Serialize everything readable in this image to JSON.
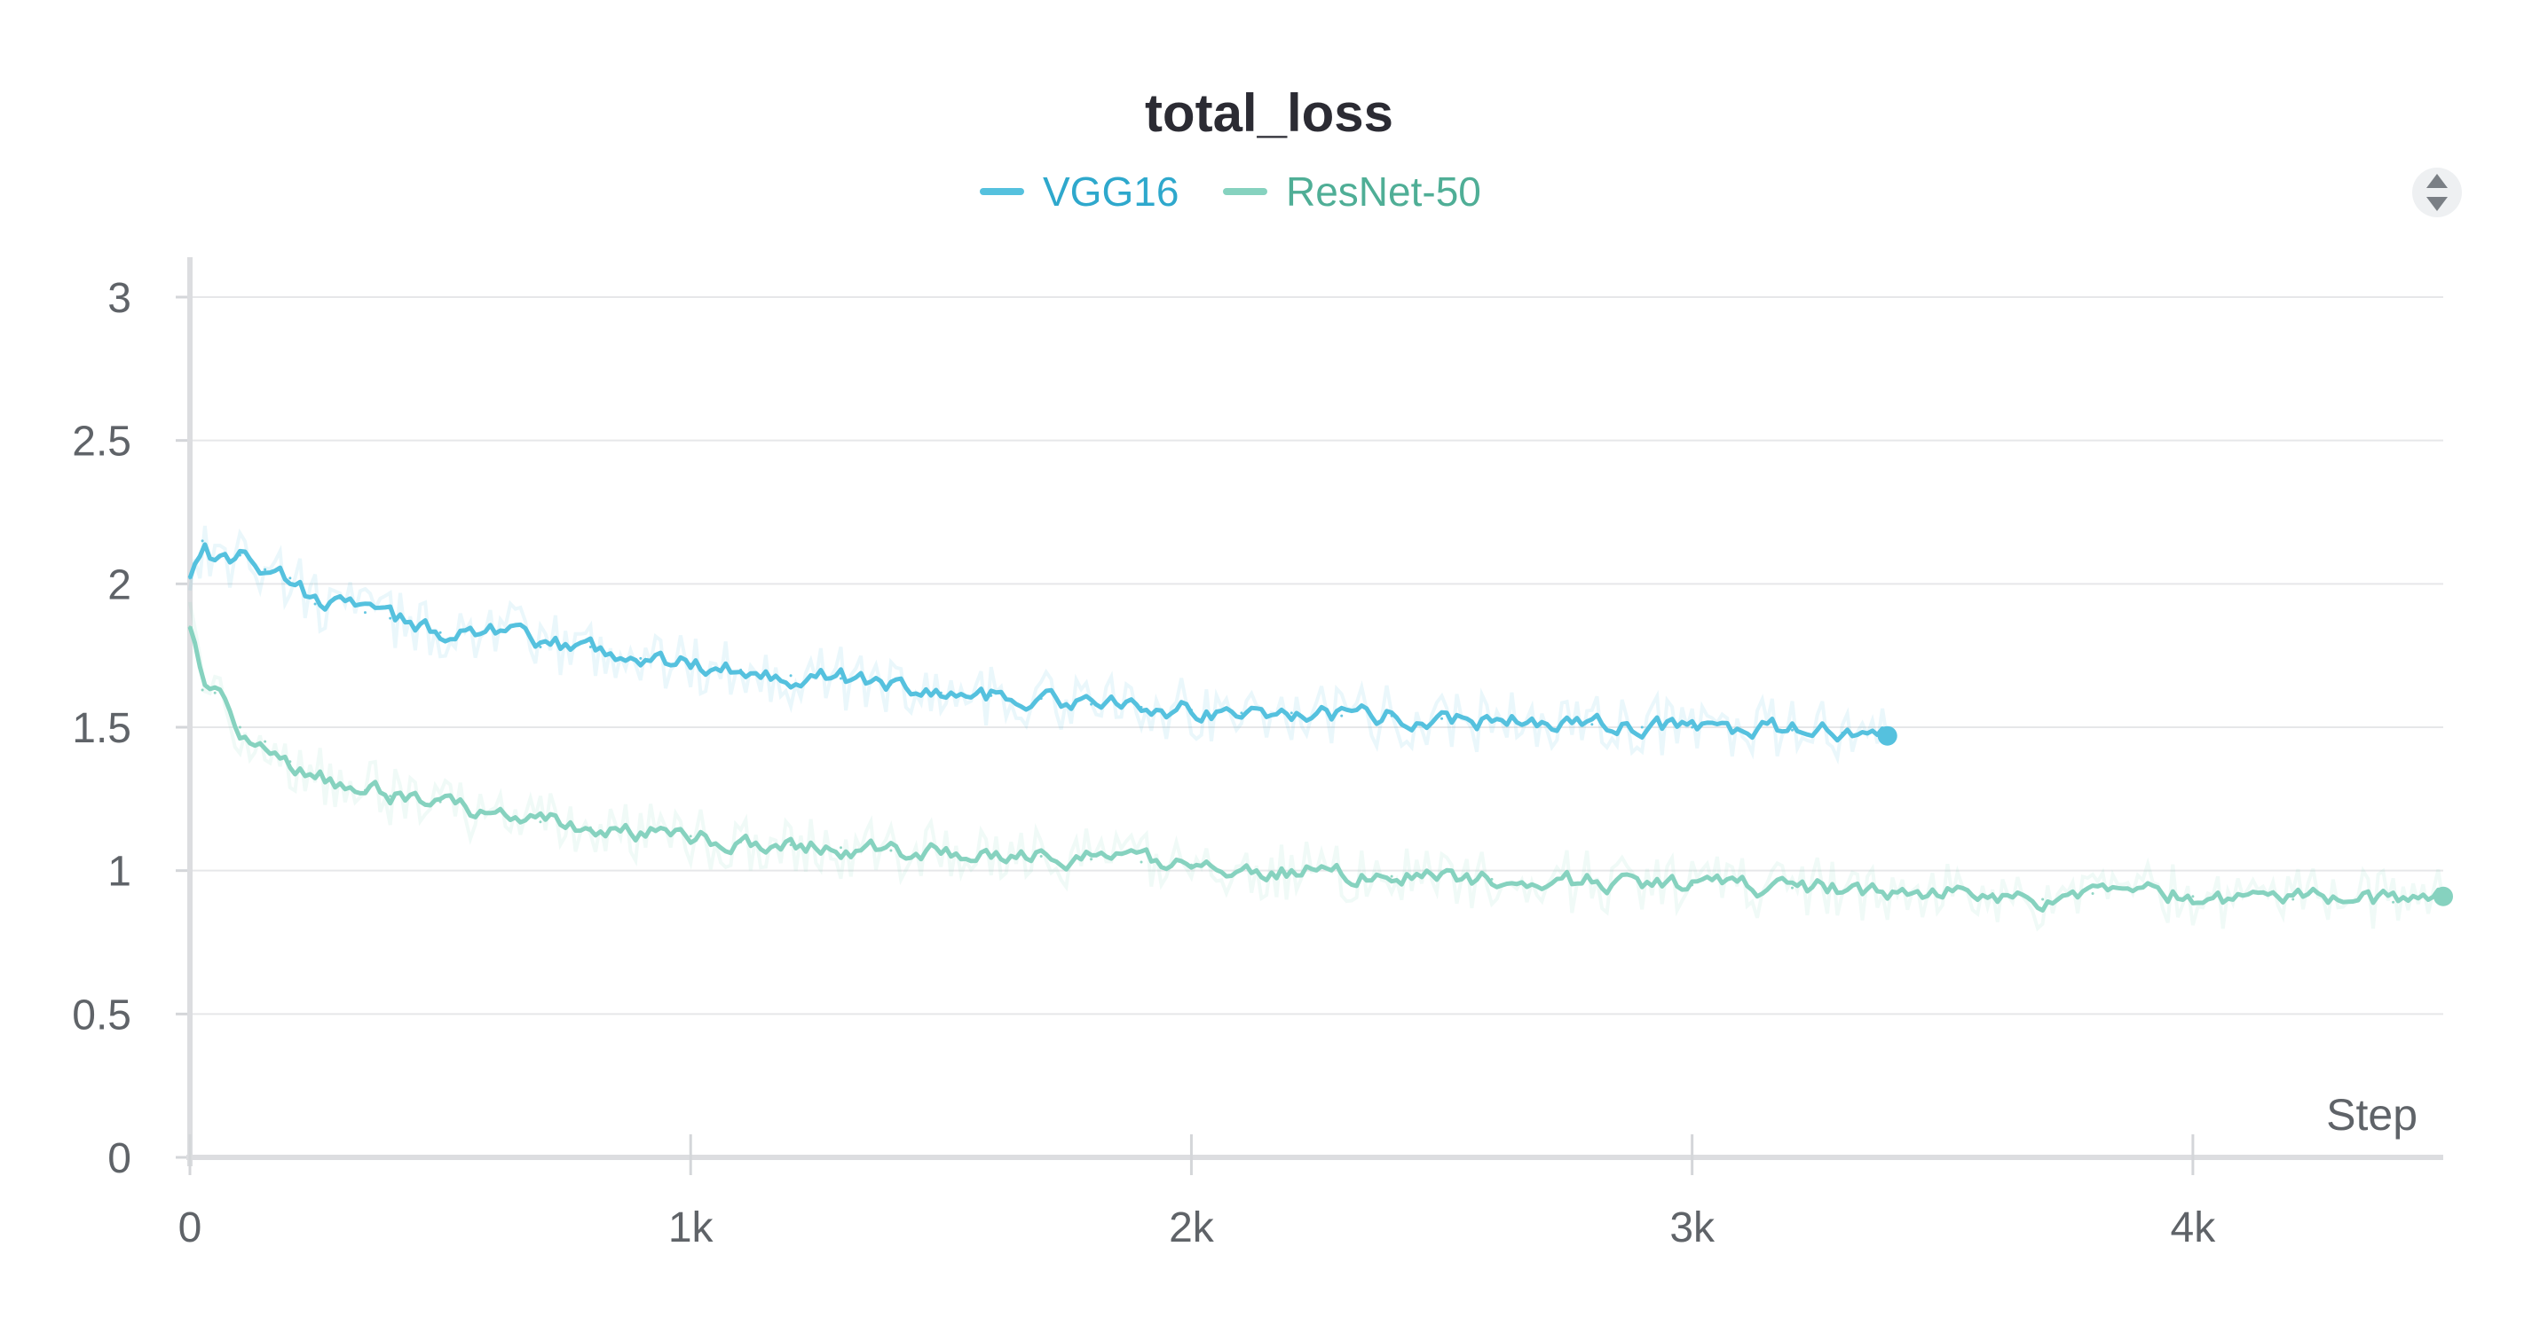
{
  "chart_data": {
    "type": "line",
    "title": "total_loss",
    "xlabel": "Step",
    "ylabel": "",
    "xlim": [
      0,
      4500
    ],
    "ylim": [
      0,
      3
    ],
    "x_ticks": [
      {
        "value": 0,
        "label": "0"
      },
      {
        "value": 1000,
        "label": "1k"
      },
      {
        "value": 2000,
        "label": "2k"
      },
      {
        "value": 3000,
        "label": "3k"
      },
      {
        "value": 4000,
        "label": "4k"
      }
    ],
    "y_ticks": [
      {
        "value": 0,
        "label": "0"
      },
      {
        "value": 0.5,
        "label": "0.5"
      },
      {
        "value": 1,
        "label": "1"
      },
      {
        "value": 1.5,
        "label": "1.5"
      },
      {
        "value": 2,
        "label": "2"
      },
      {
        "value": 2.5,
        "label": "2.5"
      },
      {
        "value": 3,
        "label": "3"
      }
    ],
    "grid": true,
    "legend": "top-center",
    "series": [
      {
        "name": "VGG16",
        "color": "#55c1de",
        "legend_color": "#2ea8cc",
        "x": [
          0,
          25,
          50,
          100,
          150,
          200,
          250,
          300,
          350,
          400,
          500,
          600,
          700,
          800,
          900,
          1000,
          1100,
          1200,
          1300,
          1400,
          1500,
          1600,
          1700,
          1800,
          1900,
          2000,
          2100,
          2200,
          2300,
          2400,
          2500,
          2600,
          2700,
          2800,
          2900,
          3000,
          3100,
          3200,
          3300,
          3390
        ],
        "y": [
          2.02,
          2.15,
          2.08,
          2.1,
          2.05,
          2.02,
          1.93,
          1.95,
          1.9,
          1.88,
          1.83,
          1.85,
          1.78,
          1.78,
          1.74,
          1.72,
          1.7,
          1.68,
          1.67,
          1.65,
          1.62,
          1.61,
          1.6,
          1.58,
          1.57,
          1.56,
          1.55,
          1.55,
          1.54,
          1.54,
          1.53,
          1.52,
          1.52,
          1.51,
          1.5,
          1.5,
          1.49,
          1.49,
          1.48,
          1.47
        ]
      },
      {
        "name": "ResNet-50",
        "color": "#86d2bf",
        "legend_color": "#4fae96",
        "x": [
          0,
          25,
          50,
          75,
          100,
          150,
          200,
          250,
          300,
          350,
          400,
          500,
          600,
          700,
          800,
          900,
          1000,
          1100,
          1200,
          1300,
          1400,
          1500,
          1600,
          1700,
          1800,
          1900,
          2000,
          2200,
          2400,
          2600,
          2800,
          3000,
          3200,
          3400,
          3600,
          3700,
          3800,
          4000,
          4200,
          4400,
          4500
        ],
        "y": [
          1.85,
          1.63,
          1.62,
          1.58,
          1.5,
          1.45,
          1.38,
          1.33,
          1.3,
          1.28,
          1.26,
          1.24,
          1.2,
          1.17,
          1.15,
          1.13,
          1.12,
          1.1,
          1.09,
          1.08,
          1.07,
          1.06,
          1.05,
          1.05,
          1.04,
          1.03,
          1.02,
          1.0,
          0.98,
          0.97,
          0.96,
          0.95,
          0.94,
          0.93,
          0.92,
          0.9,
          0.92,
          0.91,
          0.9,
          0.89,
          0.91
        ]
      }
    ]
  }
}
